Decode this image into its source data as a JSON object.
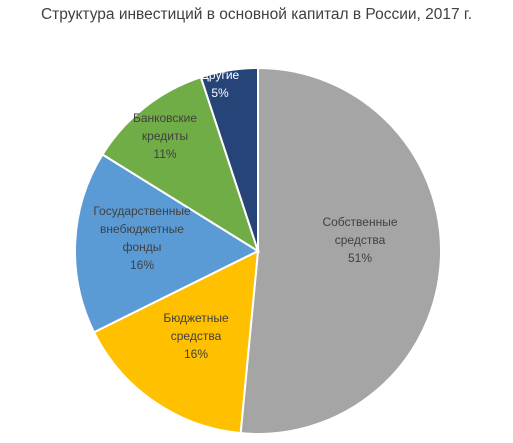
{
  "chart_data": {
    "type": "pie",
    "title": "Структура инвестиций в основной капитал в России, 2017 г.",
    "slices": [
      {
        "label_lines": [
          "Собственные",
          "средства"
        ],
        "pct_label": "51%",
        "value": 51,
        "color": "#a5a5a5",
        "text_color": "#404040"
      },
      {
        "label_lines": [
          "Бюджетные",
          "средства"
        ],
        "pct_label": "16%",
        "value": 16,
        "color": "#ffc000",
        "text_color": "#404040"
      },
      {
        "label_lines": [
          "Государственные",
          "внебюджетные",
          "фонды"
        ],
        "pct_label": "16%",
        "value": 16,
        "color": "#5b9bd5",
        "text_color": "#404040"
      },
      {
        "label_lines": [
          "Банковские",
          "кредиты"
        ],
        "pct_label": "11%",
        "value": 11,
        "color": "#70ad47",
        "text_color": "#404040"
      },
      {
        "label_lines": [
          "Другие"
        ],
        "pct_label": "5%",
        "value": 5,
        "color": "#264478",
        "text_color": "#ffffff"
      }
    ],
    "legend": "none"
  }
}
